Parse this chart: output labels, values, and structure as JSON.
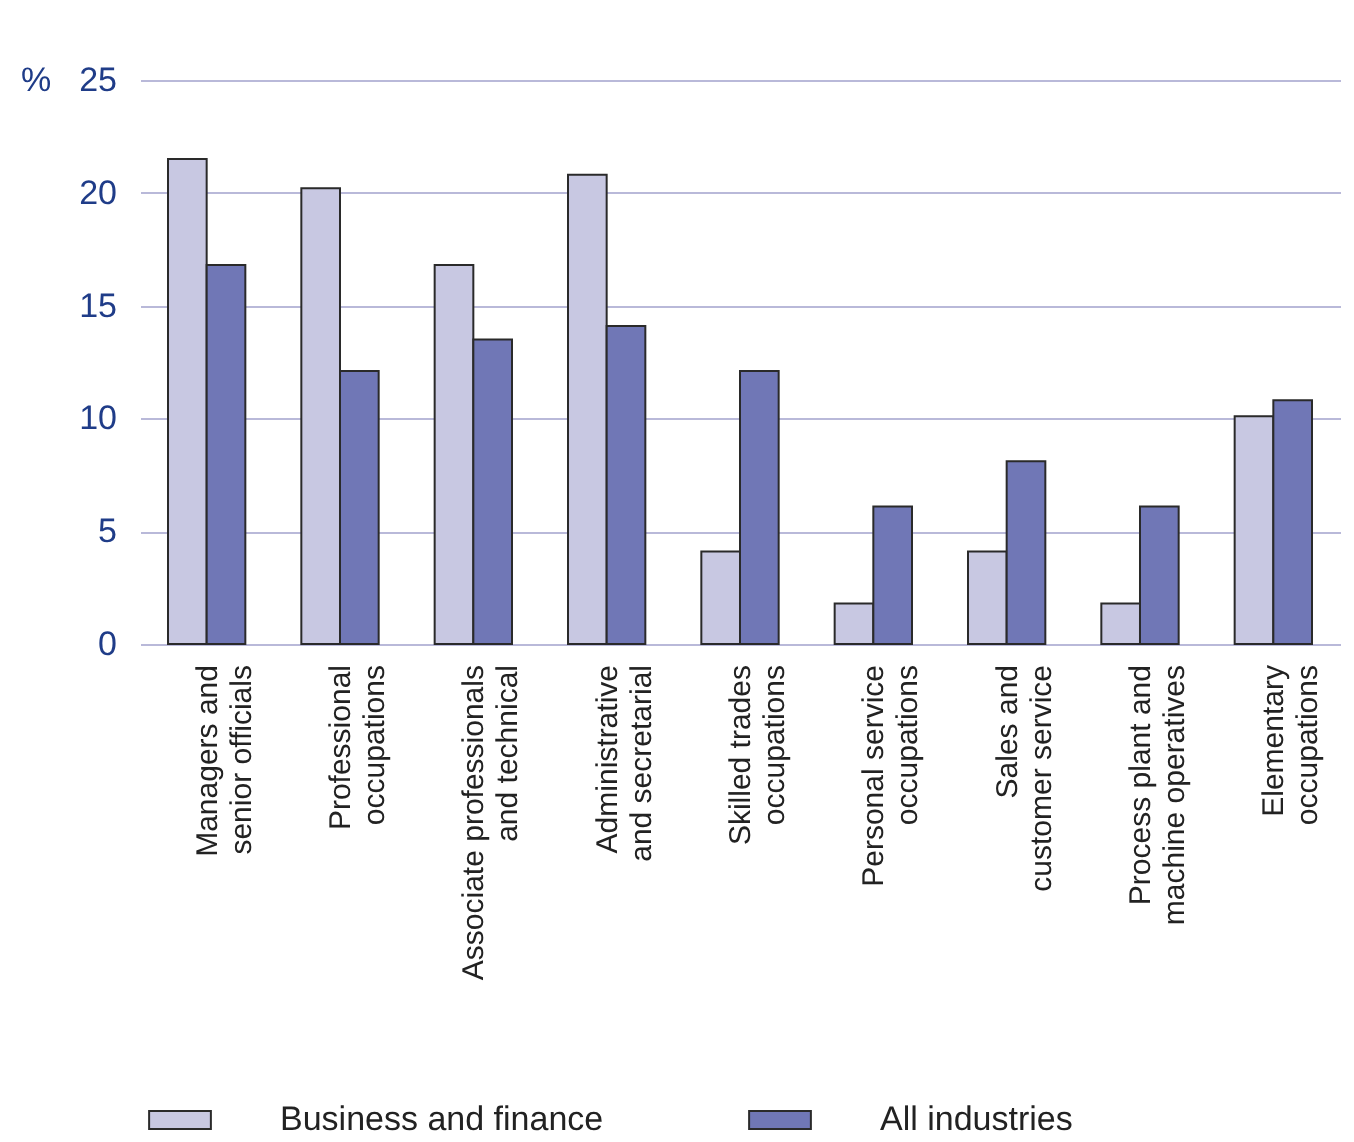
{
  "chart_data": {
    "type": "bar",
    "ylabel": "%",
    "categories": [
      "Managers and\nsenior officials",
      "Professional\noccupations",
      "Associate professionals\nand technical",
      "Administrative\nand secretarial",
      "Skilled trades\noccupations",
      "Personal service\noccupations",
      "Sales and\ncustomer service",
      "Process plant and\nmachine operatives",
      "Elementary\noccupations"
    ],
    "series": [
      {
        "name": "Business and finance",
        "color": "#c8c8e2",
        "values": [
          21.5,
          20.2,
          16.8,
          20.8,
          4.1,
          1.8,
          4.1,
          1.8,
          10.1
        ]
      },
      {
        "name": "All industries",
        "color": "#7077b6",
        "values": [
          16.8,
          12.1,
          13.5,
          14.1,
          12.1,
          6.1,
          8.1,
          6.1,
          10.8
        ]
      }
    ],
    "ylim": [
      0,
      25
    ],
    "yticks": [
      0,
      5,
      10,
      15,
      20,
      25
    ],
    "grid": "y",
    "legend": "bottom"
  }
}
